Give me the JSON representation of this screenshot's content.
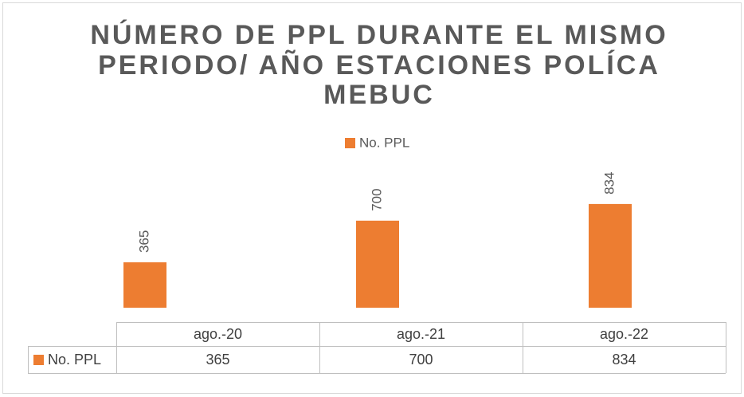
{
  "chart_data": {
    "type": "bar",
    "title": [
      "NÚMERO DE  PPL DURANTE EL MISMO",
      "PERIODO/ AÑO ESTACIONES POLÍCA",
      "MEBUC"
    ],
    "categories": [
      "ago.-20",
      "ago.-21",
      "ago.-22"
    ],
    "series": [
      {
        "name": "No. PPL",
        "color": "#ed7d31",
        "values": [
          365,
          700,
          834
        ]
      }
    ],
    "legend": "top",
    "data_table": true
  }
}
